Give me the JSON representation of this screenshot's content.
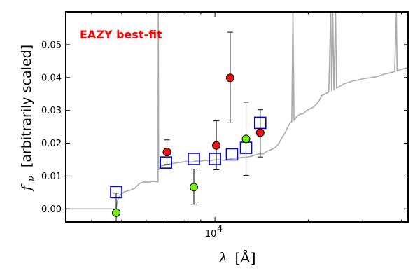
{
  "chart_data": {
    "type": "scatter",
    "title": "",
    "annotation": "EAZY best-fit",
    "annotation_color": "#ff0000",
    "xlabel_symbol": "λ",
    "xlabel_unit": "[Å]",
    "ylabel_symbol": "f",
    "ylabel_subscript": "ν",
    "ylabel_text": "[arbitrarily scaled]",
    "xscale": "log",
    "xlim": [
      3300,
      42000
    ],
    "ylim": [
      -0.004,
      0.06
    ],
    "x_tick_label": "10",
    "x_tick_exponent": "4",
    "y_ticks": [
      0.0,
      0.01,
      0.02,
      0.03,
      0.04,
      0.05
    ],
    "y_tick_labels": [
      "0.00",
      "0.01",
      "0.02",
      "0.03",
      "0.04",
      "0.05"
    ],
    "grid": false,
    "colors": {
      "template": "#aaaaaa",
      "model_box": "#0000dd",
      "red_points": "#ee1111",
      "green_points": "#77ee11",
      "errorbar": "#000000"
    },
    "series": [
      {
        "kind": "template",
        "points": [
          [
            3300,
            0.0
          ],
          [
            4300,
            0.0
          ],
          [
            4500,
            0.0
          ],
          [
            4700,
            0.0
          ],
          [
            4800,
            0.0
          ],
          [
            4850,
            0.0025
          ],
          [
            4950,
            0.0042
          ],
          [
            5100,
            0.0052
          ],
          [
            5300,
            0.0056
          ],
          [
            5500,
            0.0062
          ],
          [
            5700,
            0.0077
          ],
          [
            5900,
            0.0082
          ],
          [
            6100,
            0.0081
          ],
          [
            6300,
            0.0084
          ],
          [
            6550,
            0.0082
          ],
          [
            6563,
            0.06
          ],
          [
            6580,
            0.0118
          ],
          [
            6620,
            0.0126
          ],
          [
            6700,
            0.013
          ],
          [
            6900,
            0.0133
          ],
          [
            7200,
            0.0137
          ],
          [
            7500,
            0.014
          ],
          [
            7800,
            0.0142
          ],
          [
            8100,
            0.0145
          ],
          [
            8400,
            0.0142
          ],
          [
            8700,
            0.0146
          ],
          [
            9000,
            0.0145
          ],
          [
            9300,
            0.0148
          ],
          [
            9600,
            0.0146
          ],
          [
            9900,
            0.0149
          ],
          [
            10300,
            0.015
          ],
          [
            10700,
            0.0148
          ],
          [
            11100,
            0.0152
          ],
          [
            11500,
            0.0154
          ],
          [
            11900,
            0.0155
          ],
          [
            12300,
            0.0157
          ],
          [
            12700,
            0.0158
          ],
          [
            13100,
            0.016
          ],
          [
            13500,
            0.0164
          ],
          [
            13900,
            0.0168
          ],
          [
            14300,
            0.0167
          ],
          [
            14700,
            0.0175
          ],
          [
            15000,
            0.0178
          ],
          [
            15400,
            0.0183
          ],
          [
            15800,
            0.019
          ],
          [
            16100,
            0.02
          ],
          [
            16400,
            0.0215
          ],
          [
            16800,
            0.023
          ],
          [
            17200,
            0.025
          ],
          [
            17500,
            0.0262
          ],
          [
            17700,
            0.0266
          ],
          [
            17850,
            0.06
          ],
          [
            18000,
            0.027
          ],
          [
            18400,
            0.0282
          ],
          [
            18800,
            0.0288
          ],
          [
            19300,
            0.029
          ],
          [
            19800,
            0.03
          ],
          [
            20300,
            0.0305
          ],
          [
            20800,
            0.031
          ],
          [
            21300,
            0.032
          ],
          [
            21700,
            0.033
          ],
          [
            22100,
            0.0345
          ],
          [
            22500,
            0.0348
          ],
          [
            22900,
            0.0352
          ],
          [
            23300,
            0.0356
          ],
          [
            23650,
            0.06
          ],
          [
            23800,
            0.0358
          ],
          [
            24000,
            0.06
          ],
          [
            24200,
            0.0362
          ],
          [
            24500,
            0.06
          ],
          [
            24700,
            0.0368
          ],
          [
            25200,
            0.0372
          ],
          [
            26000,
            0.038
          ],
          [
            27000,
            0.0385
          ],
          [
            28000,
            0.039
          ],
          [
            29000,
            0.0392
          ],
          [
            30000,
            0.0396
          ],
          [
            31000,
            0.0398
          ],
          [
            32000,
            0.04
          ],
          [
            33000,
            0.0402
          ],
          [
            34000,
            0.0405
          ],
          [
            35000,
            0.041
          ],
          [
            36000,
            0.0412
          ],
          [
            37000,
            0.0415
          ],
          [
            38000,
            0.0418
          ],
          [
            38500,
            0.06
          ],
          [
            38700,
            0.042
          ],
          [
            40000,
            0.0425
          ],
          [
            42000,
            0.043
          ]
        ]
      },
      {
        "kind": "model_boxes",
        "points": [
          [
            4800,
            0.0051
          ],
          [
            6950,
            0.0141
          ],
          [
            8550,
            0.0152
          ],
          [
            10000,
            0.0152
          ],
          [
            11350,
            0.0166
          ],
          [
            12600,
            0.0186
          ],
          [
            14000,
            0.0262
          ]
        ]
      },
      {
        "kind": "observed_red",
        "points": [
          {
            "x": 7000,
            "y": 0.0173,
            "lo": 0.0135,
            "hi": 0.021
          },
          {
            "x": 10100,
            "y": 0.0193,
            "lo": 0.0119,
            "hi": 0.0268
          },
          {
            "x": 11200,
            "y": 0.0399,
            "lo": 0.0262,
            "hi": 0.0538
          },
          {
            "x": 14000,
            "y": 0.0232,
            "lo": 0.0158,
            "hi": 0.0302
          }
        ]
      },
      {
        "kind": "observed_green",
        "points": [
          {
            "x": 4800,
            "y": -0.0012,
            "lo": -0.004,
            "hi": 0.0048
          },
          {
            "x": 8550,
            "y": 0.0066,
            "lo": 0.0014,
            "hi": 0.0121
          },
          {
            "x": 12600,
            "y": 0.0213,
            "lo": 0.0102,
            "hi": 0.0325
          }
        ]
      }
    ]
  }
}
